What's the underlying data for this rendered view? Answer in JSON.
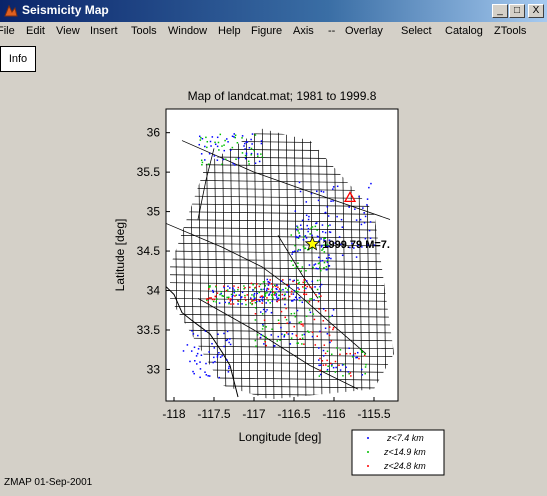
{
  "window": {
    "title": "Seismicity Map",
    "minimize": "_",
    "maximize": "□",
    "close": "X"
  },
  "menu": [
    "File",
    "Edit",
    "View",
    "Insert",
    "Tools",
    "Window",
    "Help",
    "Figure",
    "Axis",
    "--",
    "Overlay",
    "Select",
    "Catalog",
    "ZTools"
  ],
  "info_button": "Info",
  "footer": "ZMAP 01-Sep-2001",
  "colors": {
    "titlebar_start": "#0a246a",
    "titlebar_end": "#a6caf0",
    "shallow": "#0000ff",
    "mid": "#00c000",
    "deep": "#ff0000",
    "grid": "#000000",
    "mainshock": "#ffff00",
    "station": "#ff0000"
  },
  "chart_data": {
    "type": "scatter",
    "title": "Map of landcat.mat; 1981 to 1999.8",
    "xlabel": "Longitude [deg]",
    "ylabel": "Latitude [deg]",
    "xlim": [
      -118.1,
      -115.2
    ],
    "ylim": [
      32.6,
      36.3
    ],
    "xticks": [
      "-118",
      "-117.5",
      "-117",
      "-116.5",
      "-116",
      "-115.5"
    ],
    "xtick_values": [
      -118,
      -117.5,
      -117,
      -116.5,
      -116,
      -115.5
    ],
    "yticks": [
      "33",
      "33.5",
      "34",
      "34.5",
      "35",
      "35.5",
      "36"
    ],
    "ytick_values": [
      33,
      33.5,
      34,
      34.5,
      35,
      35.5,
      36
    ],
    "grid": "on",
    "legend_placement": "bottom-right outside",
    "annotation": {
      "text": "1999.79 M=7.",
      "x": -116.27,
      "y": 34.59
    },
    "mainshock": {
      "x": -116.27,
      "y": 34.59
    },
    "station_marker": {
      "x": -115.8,
      "y": 35.18
    },
    "series": [
      {
        "name": "z<7.4 km",
        "color": "#0000ff"
      },
      {
        "name": "z<14.9 km",
        "color": "#00c000"
      },
      {
        "name": "z<24.8 km",
        "color": "#ff0000"
      }
    ]
  }
}
